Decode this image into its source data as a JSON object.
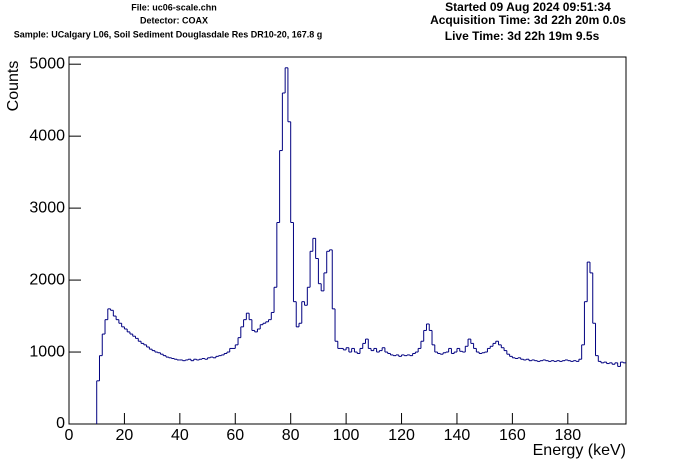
{
  "chart_data": {
    "type": "histogram",
    "file": "File: uc06-scale.chn",
    "detector": "Detector: COAX",
    "sample": "Sample: UCalgary L06, Soil Sediment Douglasdale Res DR10-20, 167.8 g",
    "started": "Started 09 Aug 2024 09:51:34",
    "acquisition_time": "Acquisition Time: 3d 22h 20m 0.0s",
    "live_time": "Live Time: 3d 22h 19m 9.5s",
    "x_label": "Energy (keV)",
    "y_label": "Counts",
    "color": "#000080",
    "xlim": [
      0,
      201
    ],
    "ylim": [
      0,
      5100
    ],
    "xticks": [
      0,
      20,
      40,
      60,
      80,
      100,
      120,
      140,
      160,
      180
    ],
    "yticks": [
      0,
      1000,
      2000,
      3000,
      4000,
      5000
    ],
    "bins": [
      10,
      11,
      12,
      13,
      14,
      15,
      16,
      17,
      18,
      19,
      20,
      21,
      22,
      23,
      24,
      25,
      26,
      27,
      28,
      29,
      30,
      31,
      32,
      33,
      34,
      35,
      36,
      37,
      38,
      39,
      40,
      41,
      42,
      43,
      44,
      45,
      46,
      47,
      48,
      49,
      50,
      51,
      52,
      53,
      54,
      55,
      56,
      57,
      58,
      59,
      60,
      61,
      62,
      63,
      64,
      65,
      66,
      67,
      68,
      69,
      70,
      71,
      72,
      73,
      74,
      75,
      76,
      77,
      78,
      79,
      80,
      81,
      82,
      83,
      84,
      85,
      86,
      87,
      88,
      89,
      90,
      91,
      92,
      93,
      94,
      95,
      96,
      97,
      98,
      99,
      100,
      101,
      102,
      103,
      104,
      105,
      106,
      107,
      108,
      109,
      110,
      111,
      112,
      113,
      114,
      115,
      116,
      117,
      118,
      119,
      120,
      121,
      122,
      123,
      124,
      125,
      126,
      127,
      128,
      129,
      130,
      131,
      132,
      133,
      134,
      135,
      136,
      137,
      138,
      139,
      140,
      141,
      142,
      143,
      144,
      145,
      146,
      147,
      148,
      149,
      150,
      151,
      152,
      153,
      154,
      155,
      156,
      157,
      158,
      159,
      160,
      161,
      162,
      163,
      164,
      165,
      166,
      167,
      168,
      169,
      170,
      171,
      172,
      173,
      174,
      175,
      176,
      177,
      178,
      179,
      180,
      181,
      182,
      183,
      184,
      185,
      186,
      187,
      188,
      189,
      190,
      191,
      192,
      193,
      194,
      195,
      196,
      197,
      198,
      199,
      200,
      201
    ],
    "counts": [
      600,
      950,
      1250,
      1450,
      1600,
      1580,
      1500,
      1450,
      1400,
      1350,
      1320,
      1280,
      1250,
      1220,
      1190,
      1150,
      1120,
      1100,
      1070,
      1040,
      1020,
      1000,
      990,
      970,
      950,
      930,
      920,
      910,
      900,
      890,
      890,
      880,
      890,
      900,
      880,
      900,
      890,
      900,
      910,
      900,
      920,
      930,
      920,
      940,
      950,
      960,
      980,
      1000,
      1050,
      1050,
      1100,
      1200,
      1350,
      1450,
      1540,
      1450,
      1300,
      1280,
      1320,
      1380,
      1400,
      1420,
      1450,
      1550,
      1900,
      2800,
      3800,
      4600,
      4950,
      4200,
      2800,
      1700,
      1350,
      1400,
      1700,
      1650,
      1900,
      2400,
      2580,
      2300,
      1950,
      1850,
      2100,
      2400,
      2420,
      1600,
      1150,
      1050,
      1050,
      1030,
      1060,
      1000,
      1050,
      1000,
      980,
      1050,
      1120,
      1180,
      1050,
      1020,
      1050,
      1000,
      1020,
      1060,
      1000,
      980,
      960,
      950,
      960,
      940,
      960,
      950,
      960,
      950,
      980,
      1000,
      1050,
      1150,
      1300,
      1390,
      1300,
      1100,
      1000,
      980,
      970,
      990,
      1000,
      1050,
      980,
      1000,
      1050,
      1010,
      1000,
      1080,
      1180,
      1120,
      1050,
      1000,
      980,
      990,
      1000,
      1050,
      1080,
      1120,
      1150,
      1100,
      1060,
      1020,
      970,
      940,
      920,
      910,
      920,
      900,
      890,
      900,
      880,
      890,
      880,
      870,
      880,
      890,
      880,
      870,
      880,
      870,
      880,
      870,
      880,
      890,
      880,
      870,
      880,
      870,
      900,
      1100,
      1700,
      2250,
      2100,
      1400,
      950,
      870,
      850,
      860,
      840,
      850,
      830,
      850,
      800,
      860,
      850
    ]
  }
}
